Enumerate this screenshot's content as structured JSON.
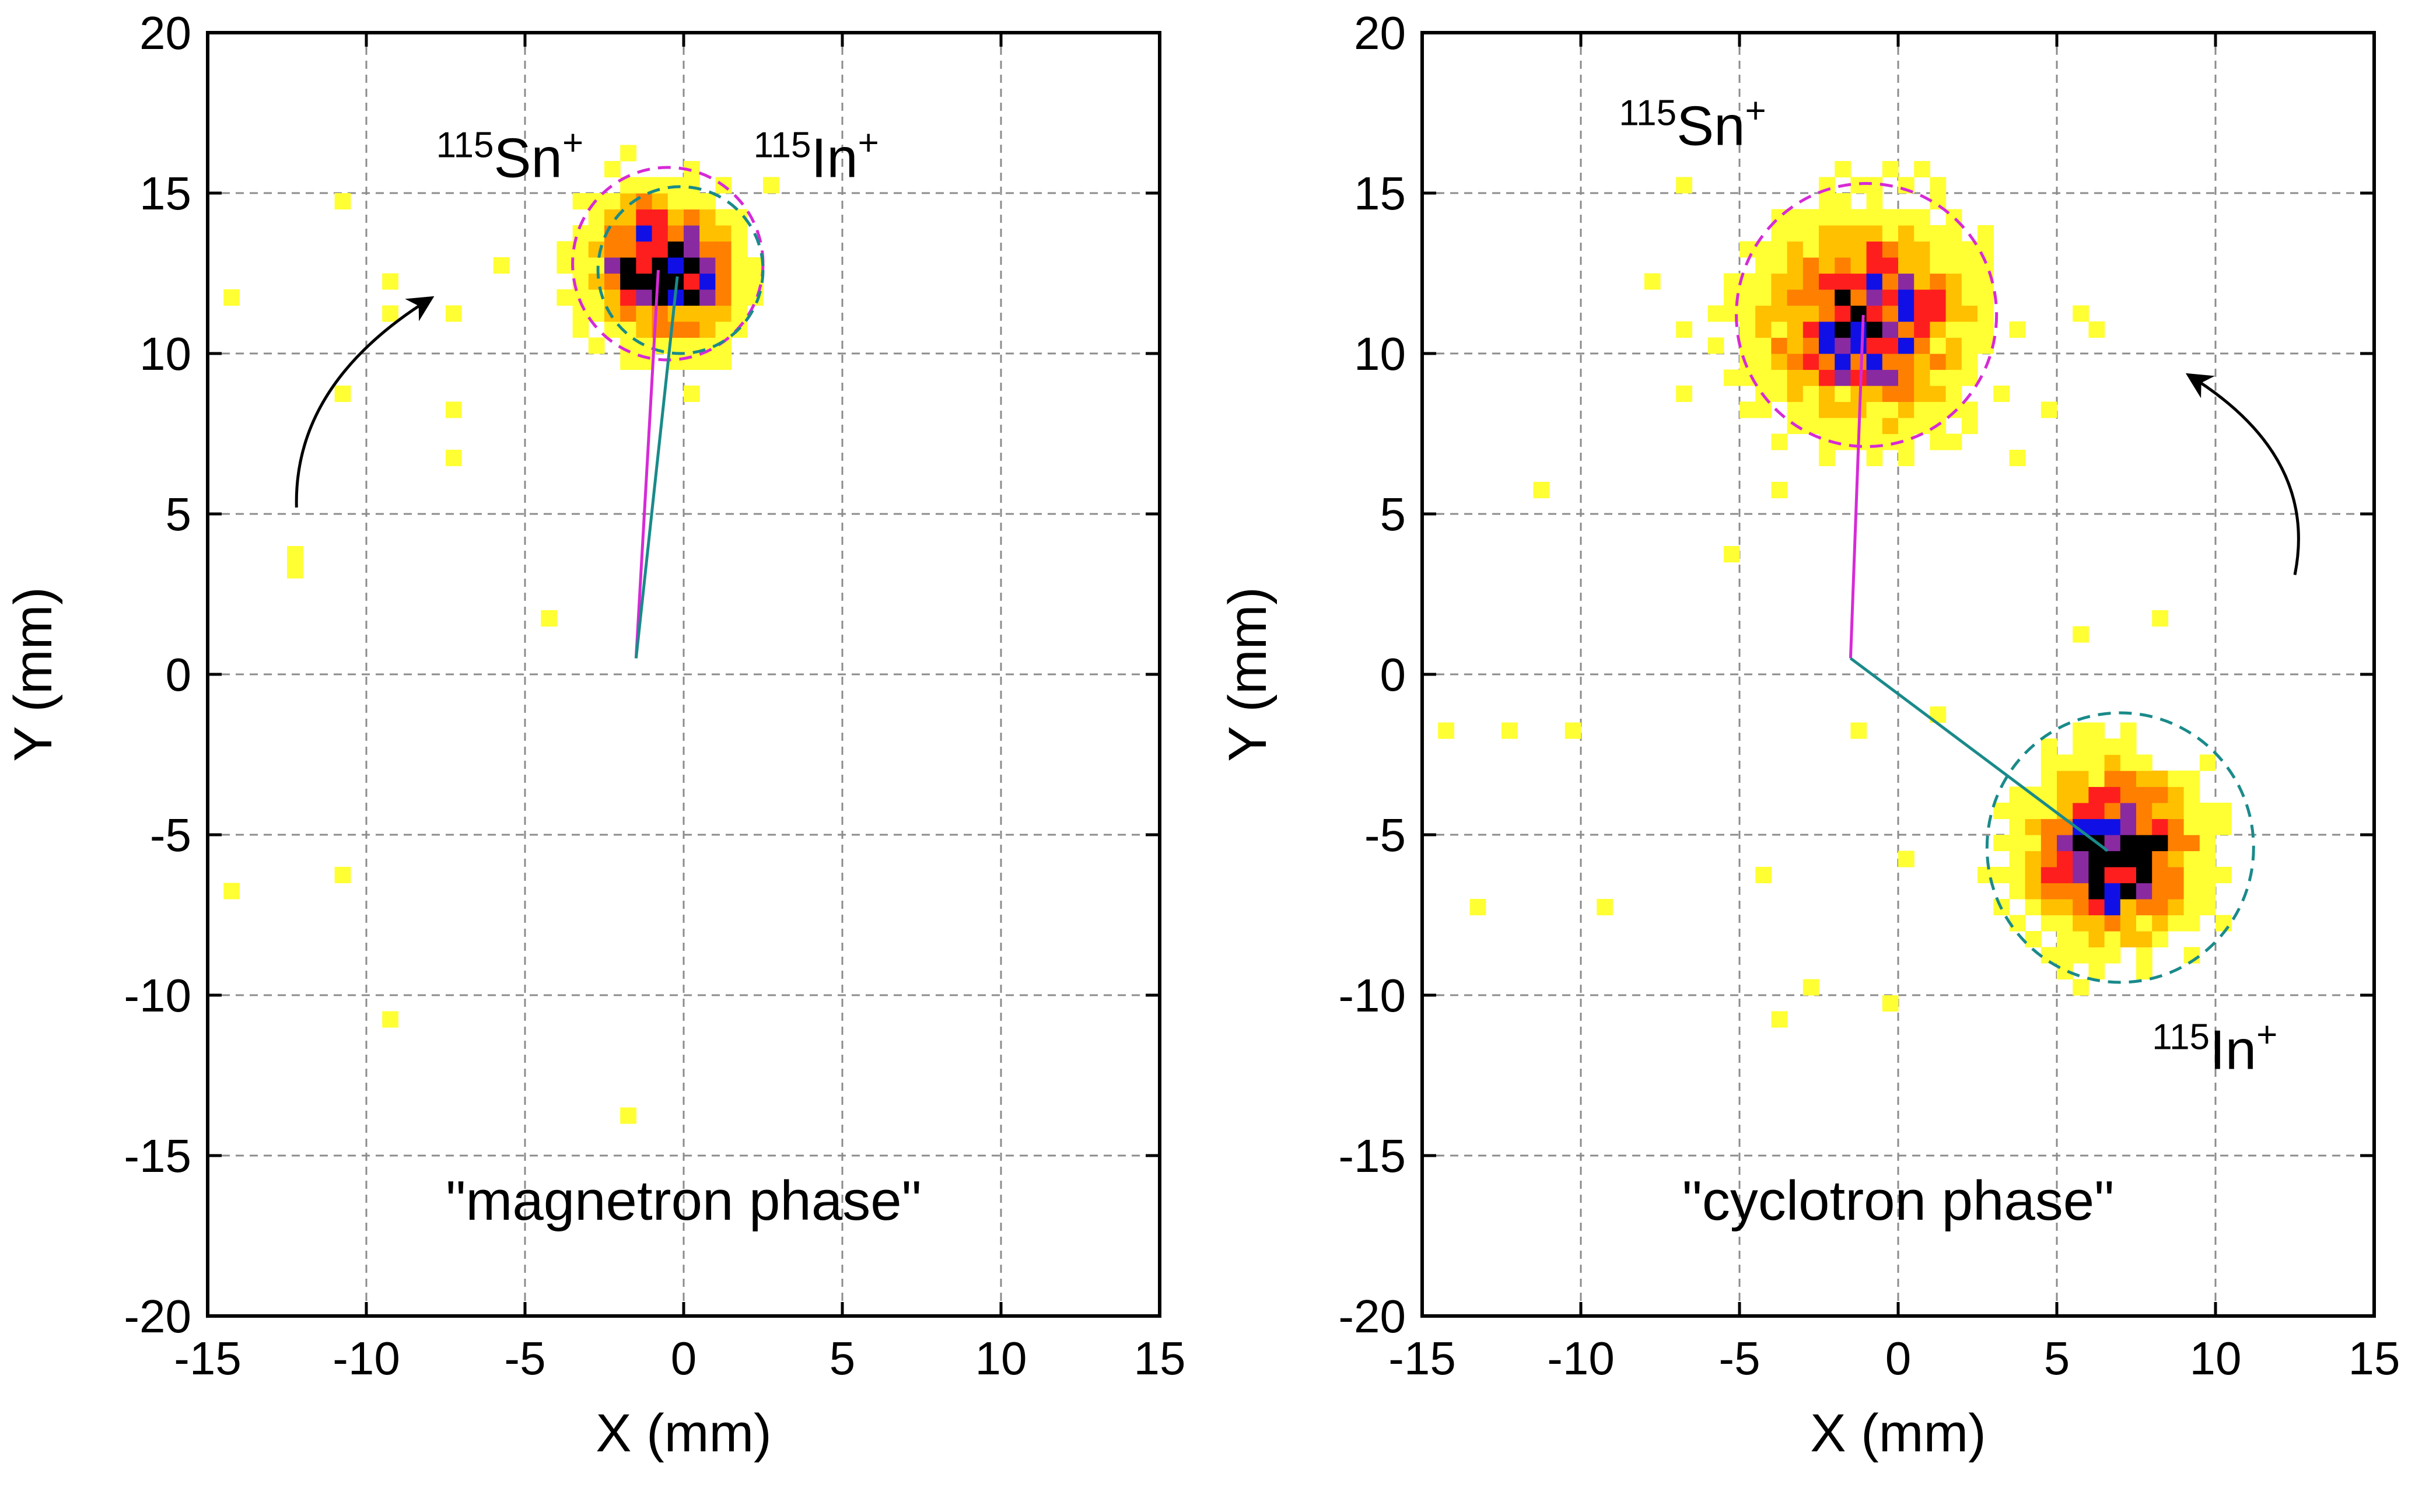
{
  "colors": {
    "magnetron_ring": "#d62ad6",
    "cyclotron_ring": "#1a8a8a",
    "heat": [
      "#ffff33",
      "#ffc000",
      "#ff7f00",
      "#ff1e1e",
      "#8a2aa0",
      "#1010e6",
      "#000000"
    ]
  },
  "chart_data": [
    {
      "type": "heatmap",
      "title": "\"magnetron phase\"",
      "xlabel": "X (mm)",
      "ylabel": "Y (mm)",
      "xlim": [
        -15,
        15
      ],
      "ylim": [
        -20,
        20
      ],
      "xticks": [
        -15,
        -10,
        -5,
        0,
        5,
        10,
        15
      ],
      "yticks": [
        20,
        15,
        10,
        5,
        0,
        -5,
        -10,
        -15,
        -20
      ],
      "xtick_labels": [
        "-15",
        "-10",
        "-5",
        "0",
        "5",
        "10",
        "15"
      ],
      "ytick_labels": [
        "20",
        "15",
        "10",
        "5",
        "0",
        "-5",
        "-10",
        "-15",
        "-20"
      ],
      "grid": true,
      "bin_size_mm": 0.5,
      "center_mm": [
        -1.5,
        0.5
      ],
      "labels": [
        {
          "id": "sn",
          "mass": "115",
          "element": "Sn",
          "charge": "+",
          "x": -7.8,
          "y": 15.5
        },
        {
          "id": "in",
          "mass": "115",
          "element": "In",
          "charge": "+",
          "x": 2.2,
          "y": 15.5
        }
      ],
      "clusters": [
        {
          "name": "115Sn+",
          "cx": -0.8,
          "cy": 12.8,
          "sigma": 1.25,
          "peak": 10
        },
        {
          "name": "115In+",
          "cx": -0.4,
          "cy": 12.5,
          "sigma": 1.25,
          "peak": 9
        }
      ],
      "rings": [
        {
          "name": "115Sn+ ring",
          "cx": -0.5,
          "cy": 12.8,
          "r": 3.0,
          "color": "magnetron_ring"
        },
        {
          "name": "115In+ ring",
          "cx": -0.1,
          "cy": 12.6,
          "r": 2.6,
          "color": "cyclotron_ring"
        }
      ],
      "vectors": [
        {
          "name": "115Sn+ vector",
          "x": [
            -1.5,
            -0.8
          ],
          "y": [
            0.5,
            12.6
          ],
          "color": "magnetron_ring"
        },
        {
          "name": "115In+ vector",
          "x": [
            -1.5,
            -0.2
          ],
          "y": [
            0.5,
            12.4
          ],
          "color": "cyclotron_ring"
        }
      ],
      "arrow": {
        "from": [
          -12.2,
          5.2
        ],
        "to": [
          -8.0,
          11.7
        ],
        "bend": -2.2
      },
      "stray_points": [
        [
          -14.5,
          11.5
        ],
        [
          -11,
          14.5
        ],
        [
          -9.5,
          12
        ],
        [
          -9.5,
          11.2
        ],
        [
          -11,
          8.5
        ],
        [
          -7.5,
          11
        ],
        [
          -7.5,
          8
        ],
        [
          -7.5,
          6.5
        ],
        [
          -6,
          12.5
        ],
        [
          -12.5,
          3.5
        ],
        [
          -12.5,
          3
        ],
        [
          -4.5,
          1.5
        ],
        [
          -14.5,
          -7
        ],
        [
          -11,
          -6.5
        ],
        [
          -9.5,
          -11
        ],
        [
          -2,
          -14
        ],
        [
          2.5,
          15
        ],
        [
          -2,
          16
        ],
        [
          -3.5,
          12
        ],
        [
          0,
          8.5
        ]
      ]
    },
    {
      "type": "heatmap",
      "title": "\"cyclotron phase\"",
      "xlabel": "X (mm)",
      "ylabel": "Y (mm)",
      "xlim": [
        -15,
        15
      ],
      "ylim": [
        -20,
        20
      ],
      "xticks": [
        -15,
        -10,
        -5,
        0,
        5,
        10,
        15
      ],
      "yticks": [
        20,
        15,
        10,
        5,
        0,
        -5,
        -10,
        -15,
        -20
      ],
      "xtick_labels": [
        "-15",
        "-10",
        "-5",
        "0",
        "5",
        "10",
        "15"
      ],
      "ytick_labels": [
        "20",
        "15",
        "10",
        "5",
        "0",
        "-5",
        "-10",
        "-15",
        "-20"
      ],
      "grid": true,
      "bin_size_mm": 0.5,
      "center_mm": [
        -1.5,
        0.5
      ],
      "labels": [
        {
          "id": "sn",
          "mass": "115",
          "element": "Sn",
          "charge": "+",
          "x": -8.8,
          "y": 16.5
        },
        {
          "id": "in",
          "mass": "115",
          "element": "In",
          "charge": "+",
          "x": 8.0,
          "y": -12.3
        }
      ],
      "clusters": [
        {
          "name": "115Sn+",
          "cx": -1.0,
          "cy": 11.0,
          "sigma": 1.9,
          "peak": 8
        },
        {
          "name": "115In+",
          "cx": 6.8,
          "cy": -5.6,
          "sigma": 1.55,
          "peak": 10
        }
      ],
      "rings": [
        {
          "name": "115Sn+ ring",
          "cx": -1.0,
          "cy": 11.2,
          "r": 4.1,
          "color": "magnetron_ring"
        },
        {
          "name": "115In+ ring",
          "cx": 7.0,
          "cy": -5.4,
          "r": 4.2,
          "color": "cyclotron_ring"
        }
      ],
      "vectors": [
        {
          "name": "115Sn+ vector",
          "x": [
            -1.5,
            -1.1
          ],
          "y": [
            0.5,
            11.2
          ],
          "color": "magnetron_ring"
        },
        {
          "name": "115In+ vector",
          "x": [
            -1.5,
            6.6
          ],
          "y": [
            0.5,
            -5.5
          ],
          "color": "cyclotron_ring"
        }
      ],
      "arrow": {
        "from": [
          12.5,
          3.1
        ],
        "to": [
          9.2,
          9.3
        ],
        "bend": 2.4
      },
      "stray_points": [
        [
          -14.5,
          -2
        ],
        [
          -12.5,
          -2
        ],
        [
          -10.5,
          -2
        ],
        [
          -13.5,
          -7.5
        ],
        [
          -9.5,
          -7.5
        ],
        [
          -11.5,
          5.5
        ],
        [
          -7,
          15
        ],
        [
          -8,
          12
        ],
        [
          -7,
          10.5
        ],
        [
          -7,
          8.5
        ],
        [
          -5.5,
          3.5
        ],
        [
          -4,
          5.5
        ],
        [
          -4.5,
          -6.5
        ],
        [
          -4,
          -11
        ],
        [
          -3,
          -10
        ],
        [
          -0.5,
          -10.5
        ],
        [
          -1.5,
          -2
        ],
        [
          1,
          -1.5
        ],
        [
          0.5,
          15.5
        ],
        [
          5.5,
          11
        ],
        [
          6,
          10.5
        ],
        [
          4.5,
          8
        ],
        [
          3.5,
          6.5
        ],
        [
          5.5,
          1
        ],
        [
          8,
          1.5
        ],
        [
          5.5,
          -10
        ],
        [
          2.5,
          -6.5
        ],
        [
          0,
          -6
        ]
      ]
    }
  ]
}
